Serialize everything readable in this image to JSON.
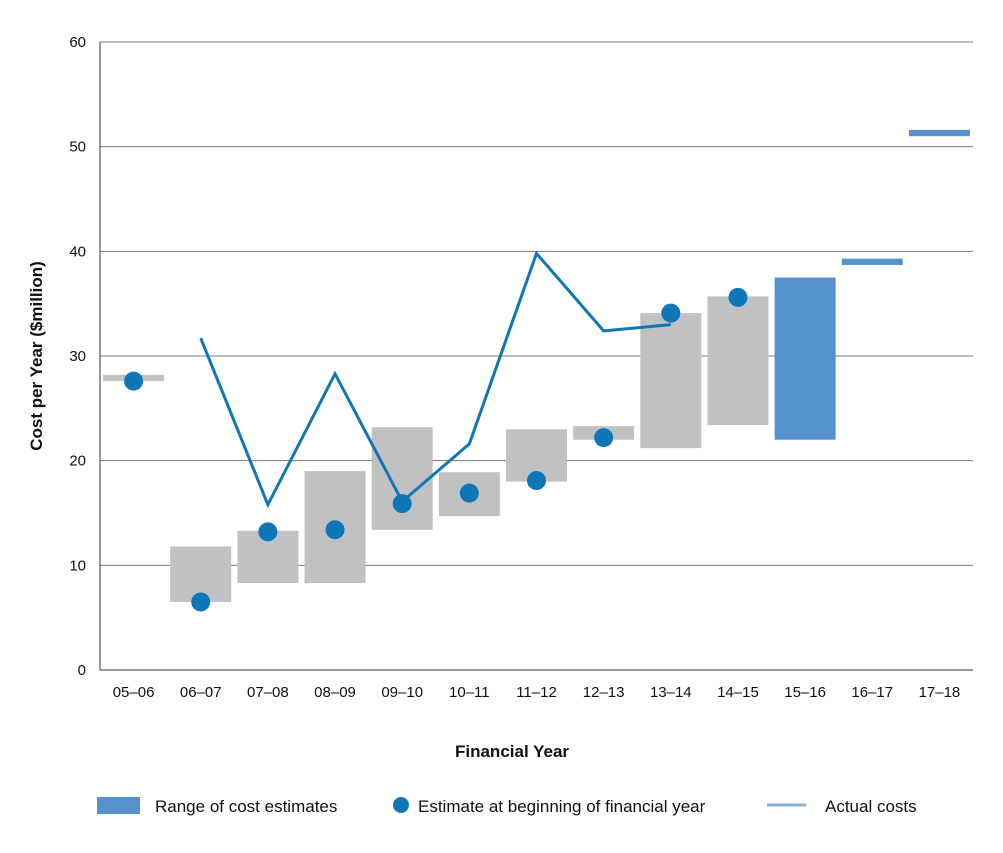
{
  "chart_data": {
    "type": "bar",
    "xlabel": "Financial Year",
    "ylabel": "Cost per Year ($million)",
    "ylim": [
      0,
      60
    ],
    "yticks": [
      "0",
      "10",
      "20",
      "30",
      "40",
      "50",
      "60"
    ],
    "grid": true,
    "categories": [
      "05–06",
      "06–07",
      "07–08",
      "08–09",
      "09–10",
      "10–11",
      "11–12",
      "12–13",
      "13–14",
      "14–15",
      "15–16",
      "16–17",
      "17–18"
    ],
    "range_of_estimates": [
      {
        "low": 27.6,
        "high": 28.2
      },
      {
        "low": 6.5,
        "high": 11.8
      },
      {
        "low": 8.3,
        "high": 13.3
      },
      {
        "low": 8.3,
        "high": 19.0
      },
      {
        "low": 13.4,
        "high": 23.2
      },
      {
        "low": 14.7,
        "high": 18.9
      },
      {
        "low": 18.0,
        "high": 23.0
      },
      {
        "low": 22.0,
        "high": 23.3
      },
      {
        "low": 21.2,
        "high": 34.1
      },
      {
        "low": 23.4,
        "high": 35.7
      },
      {
        "low": 22.0,
        "high": 37.5
      },
      {
        "low": 38.7,
        "high": 39.3
      },
      {
        "low": 51.0,
        "high": 51.6
      }
    ],
    "estimate_at_beginning": [
      27.6,
      6.5,
      13.2,
      13.4,
      15.9,
      16.9,
      18.1,
      22.2,
      34.1,
      35.6,
      null,
      null,
      null
    ],
    "actual_costs": [
      null,
      31.7,
      15.8,
      28.3,
      16.1,
      21.6,
      39.8,
      32.4,
      33.0,
      null,
      null,
      null,
      null
    ],
    "legend": [
      {
        "label": "Range of cost estimates",
        "color": "#5590cf"
      },
      {
        "label": "Estimate at beginning of financial year",
        "color": "#0f77b8"
      },
      {
        "label": "Actual costs",
        "color": "#8fb0d6"
      }
    ],
    "legend_position": "bottom",
    "colors": {
      "historic_range": "#c0c1c3",
      "forecast_range": "#5590cf",
      "estimate_dot": "#0f77b8",
      "actual_line": "#0f77b8"
    },
    "forecast_from_index": 10
  }
}
